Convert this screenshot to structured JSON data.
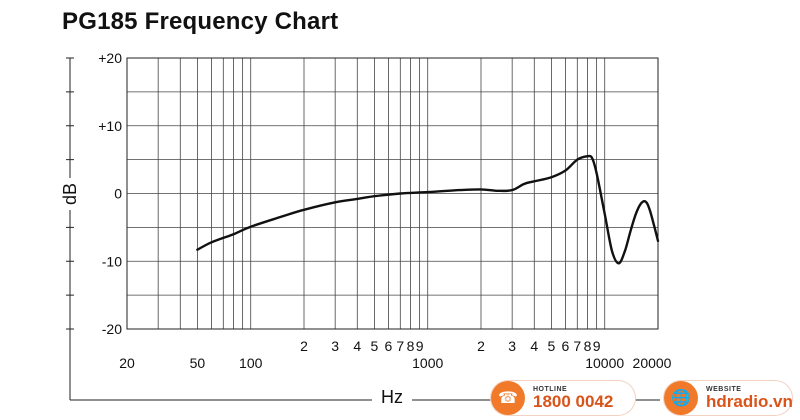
{
  "chart_data": {
    "type": "line",
    "title": "PG185 Frequency Chart",
    "xlabel": "Hz",
    "ylabel": "dB",
    "x_scale": "log",
    "xlim": [
      20,
      20000
    ],
    "ylim": [
      -20,
      20
    ],
    "grid": true,
    "y_ticks": [
      {
        "value": 20,
        "label": "+20"
      },
      {
        "value": 10,
        "label": "+10"
      },
      {
        "value": 0,
        "label": "0"
      },
      {
        "value": -10,
        "label": "-10"
      },
      {
        "value": -20,
        "label": "-20"
      }
    ],
    "x_ticks_upper": [
      {
        "value": 200,
        "label": "2"
      },
      {
        "value": 300,
        "label": "3"
      },
      {
        "value": 400,
        "label": "4"
      },
      {
        "value": 500,
        "label": "5"
      },
      {
        "value": 600,
        "label": "6"
      },
      {
        "value": 700,
        "label": "7"
      },
      {
        "value": 800,
        "label": "8"
      },
      {
        "value": 900,
        "label": "9"
      },
      {
        "value": 2000,
        "label": "2"
      },
      {
        "value": 3000,
        "label": "3"
      },
      {
        "value": 4000,
        "label": "4"
      },
      {
        "value": 5000,
        "label": "5"
      },
      {
        "value": 6000,
        "label": "6"
      },
      {
        "value": 7000,
        "label": "7"
      },
      {
        "value": 8000,
        "label": "8"
      },
      {
        "value": 9000,
        "label": "9"
      }
    ],
    "x_ticks_lower": [
      {
        "value": 20,
        "label": "20"
      },
      {
        "value": 50,
        "label": "50"
      },
      {
        "value": 100,
        "label": "100"
      },
      {
        "value": 1000,
        "label": "1000"
      },
      {
        "value": 10000,
        "label": "10000"
      },
      {
        "value": 20000,
        "label": "20000"
      }
    ],
    "series": [
      {
        "x": [
          50,
          60,
          80,
          100,
          150,
          200,
          300,
          400,
          500,
          700,
          1000,
          1500,
          2000,
          2500,
          3000,
          3500,
          4000,
          5000,
          6000,
          7000,
          8000,
          8500,
          9000,
          10000,
          11000,
          12000,
          13000,
          14000,
          15000,
          16000,
          17000,
          18000,
          20000
        ],
        "y": [
          -8.3,
          -7.2,
          -6.0,
          -4.9,
          -3.4,
          -2.4,
          -1.3,
          -0.8,
          -0.4,
          0.0,
          0.2,
          0.5,
          0.6,
          0.4,
          0.5,
          1.4,
          1.8,
          2.4,
          3.4,
          5.0,
          5.5,
          5.2,
          3.0,
          -3.0,
          -8.5,
          -10.3,
          -8.5,
          -5.5,
          -3.0,
          -1.5,
          -1.2,
          -2.5,
          -7.0
        ]
      }
    ]
  },
  "footer": {
    "hotline_label": "HOTLINE",
    "hotline_number": "1800 0042",
    "website_label": "WEBSITE",
    "website_url": "hdradio.vn",
    "phone_icon": "phone-icon",
    "globe_icon": "globe-icon"
  }
}
